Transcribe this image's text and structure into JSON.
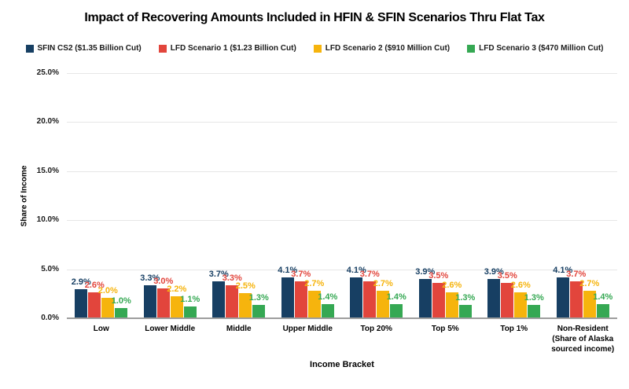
{
  "chart_data": {
    "type": "bar",
    "title": "Impact of Recovering Amounts Included in HFIN & SFIN Scenarios Thru Flat Tax",
    "xlabel": "Income Bracket",
    "ylabel": "Share of Income",
    "ylim": [
      0,
      25
    ],
    "ytick_step": 5,
    "ytick_labels": [
      "0.0%",
      "5.0%",
      "10.0%",
      "15.0%",
      "20.0%",
      "25.0%"
    ],
    "grid": true,
    "legend_position": "top",
    "categories": [
      "Low",
      "Lower Middle",
      "Middle",
      "Upper Middle",
      "Top 20%",
      "Top 5%",
      "Top 1%",
      "Non-Resident (Share of Alaska sourced income)"
    ],
    "xtick_labels": [
      "Low",
      "Lower Middle",
      "Middle",
      "Upper Middle",
      "Top 20%",
      "Top 5%",
      "Top 1%",
      "Non-Resident\n(Share of Alaska\nsourced income)"
    ],
    "series": [
      {
        "name": "SFIN CS2 ($1.35 Billion Cut)",
        "color": "#173F63",
        "values": [
          2.9,
          3.3,
          3.7,
          4.1,
          4.1,
          3.9,
          3.9,
          4.1
        ]
      },
      {
        "name": "LFD Scenario 1 ($1.23 Billion Cut)",
        "color": "#E2453C",
        "values": [
          2.6,
          3.0,
          3.3,
          3.7,
          3.7,
          3.5,
          3.5,
          3.7
        ]
      },
      {
        "name": "LFD Scenario 2  ($910 Million Cut)",
        "color": "#F6B40D",
        "values": [
          2.0,
          2.2,
          2.5,
          2.7,
          2.7,
          2.6,
          2.6,
          2.7
        ]
      },
      {
        "name": "LFD Scenario 3 ($470 Million Cut)",
        "color": "#35A853",
        "values": [
          1.0,
          1.1,
          1.3,
          1.4,
          1.4,
          1.3,
          1.3,
          1.4
        ]
      }
    ],
    "value_label_suffix": "%",
    "value_label_decimals": 1
  },
  "colors": {
    "gridline": "#E6E6E6",
    "baseline": "#9E9E9E",
    "title_text": "#000000"
  }
}
